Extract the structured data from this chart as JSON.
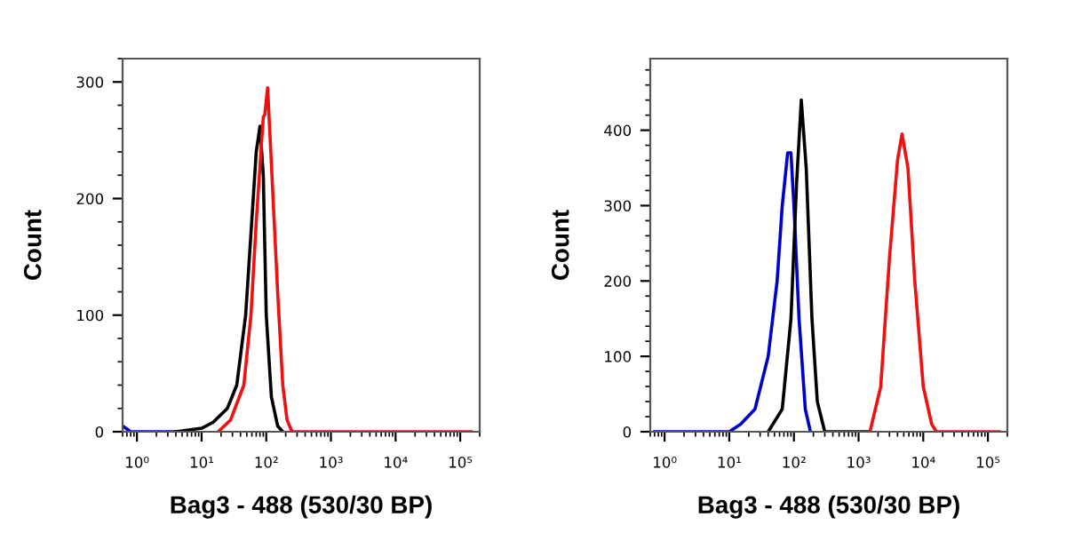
{
  "chart_data": [
    {
      "type": "line",
      "xlabel": "Bag3 - 488 (530/30 BP)",
      "ylabel": "Count",
      "log": "x",
      "xlim": [
        0.6,
        200000
      ],
      "ylim": [
        0,
        320
      ],
      "xticks": [
        {
          "value": 1,
          "label": "10⁰"
        },
        {
          "value": 10,
          "label": "10¹"
        },
        {
          "value": 100,
          "label": "10²"
        },
        {
          "value": 1000,
          "label": "10³"
        },
        {
          "value": 10000,
          "label": "10⁴"
        },
        {
          "value": 100000,
          "label": "10⁵"
        }
      ],
      "yticks": [
        0,
        100,
        200,
        300
      ],
      "grid": false,
      "legend": false,
      "series": [
        {
          "color": "#0000cc",
          "x": [
            0.6,
            0.8,
            4
          ],
          "values": [
            5,
            0,
            0
          ]
        },
        {
          "color": "#000000",
          "x": [
            4,
            10,
            15,
            25,
            35,
            48,
            58,
            70,
            80,
            90,
            100,
            120,
            150,
            180
          ],
          "values": [
            0,
            3,
            8,
            20,
            40,
            100,
            170,
            240,
            262,
            220,
            100,
            30,
            5,
            0
          ]
        },
        {
          "color": "#ee1111",
          "x": [
            18,
            28,
            45,
            58,
            70,
            85,
            90,
            95,
            105,
            120,
            150,
            180,
            210,
            250,
            150000
          ],
          "values": [
            0,
            10,
            40,
            100,
            180,
            250,
            270,
            272,
            295,
            230,
            120,
            40,
            10,
            0,
            0
          ]
        }
      ]
    },
    {
      "type": "line",
      "xlabel": "Bag3 - 488 (530/30 BP)",
      "ylabel": "Count",
      "log": "x",
      "xlim": [
        0.6,
        200000
      ],
      "ylim": [
        0,
        495
      ],
      "xticks": [
        {
          "value": 1,
          "label": "10⁰"
        },
        {
          "value": 10,
          "label": "10¹"
        },
        {
          "value": 100,
          "label": "10²"
        },
        {
          "value": 1000,
          "label": "10³"
        },
        {
          "value": 10000,
          "label": "10⁴"
        },
        {
          "value": 100000,
          "label": "10⁵"
        }
      ],
      "yticks": [
        0,
        100,
        200,
        300,
        400
      ],
      "grid": false,
      "legend": false,
      "series": [
        {
          "color": "#0000cc",
          "x": [
            0.7,
            10,
            15,
            25,
            40,
            55,
            66,
            80,
            90,
            100,
            120,
            150,
            180
          ],
          "values": [
            0,
            0,
            10,
            30,
            100,
            200,
            300,
            370,
            370,
            300,
            150,
            30,
            0
          ]
        },
        {
          "color": "#000000",
          "x": [
            40,
            66,
            90,
            110,
            130,
            155,
            190,
            230,
            300,
            1500
          ],
          "values": [
            0,
            30,
            150,
            330,
            440,
            350,
            150,
            40,
            0,
            0
          ]
        },
        {
          "color": "#ee1111",
          "x": [
            1500,
            2200,
            3000,
            4000,
            4700,
            5800,
            7400,
            10000,
            13500,
            16000,
            150000
          ],
          "values": [
            0,
            60,
            230,
            360,
            395,
            350,
            200,
            60,
            10,
            0,
            0
          ]
        }
      ]
    }
  ]
}
